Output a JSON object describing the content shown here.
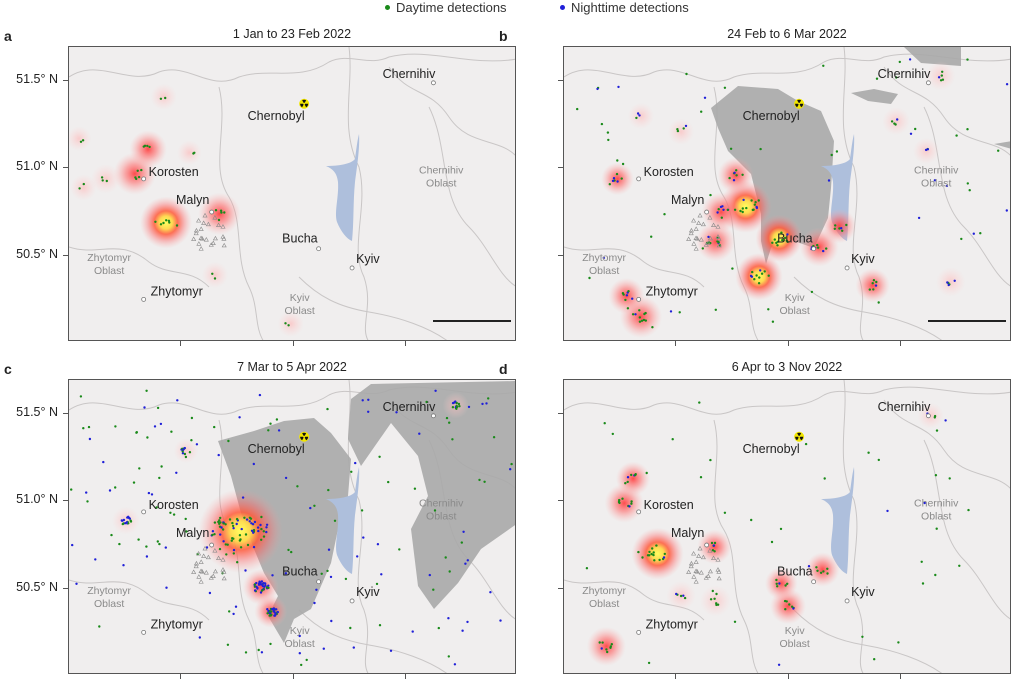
{
  "legend": {
    "daytime": {
      "label": "Daytime detections",
      "color": "#1a8a1a"
    },
    "nighttime": {
      "label": "Nighttime detections",
      "color": "#2020d8"
    }
  },
  "colors": {
    "background": "#f0eeee",
    "occupied": "#a9a9a9",
    "water": "#aebfdc",
    "border": "#c9c6c6"
  },
  "y_axis": {
    "ticks": [
      "51.5° N",
      "51.0° N",
      "50.5° N"
    ],
    "tick_values": [
      51.5,
      51.0,
      50.5
    ]
  },
  "map_extent": {
    "lon": [
      27.96,
      31.98
    ],
    "lat": [
      50.006,
      51.695
    ]
  },
  "cities": [
    {
      "name": "Korosten",
      "lon": 28.63,
      "lat": 50.94
    },
    {
      "name": "Malyn",
      "lon": 29.24,
      "lat": 50.75
    },
    {
      "name": "Bucha",
      "lon": 30.2,
      "lat": 50.54
    },
    {
      "name": "Kyiv",
      "lon": 30.5,
      "lat": 50.43
    },
    {
      "name": "Zhytomyr",
      "lon": 28.63,
      "lat": 50.25
    },
    {
      "name": "Chernihiv",
      "lon": 31.23,
      "lat": 51.49
    }
  ],
  "chernobyl": {
    "name": "Chernobyl",
    "lon": 30.07,
    "lat": 51.37,
    "icon": "radiation-icon"
  },
  "oblasts": [
    {
      "name_line1": "Zhytomyr",
      "name_line2": "Oblast",
      "lon": 28.32,
      "lat": 50.47
    },
    {
      "name_line1": "Kyiv",
      "name_line2": "Oblast",
      "lon": 30.03,
      "lat": 50.24
    },
    {
      "name_line1": "Chernihiv",
      "name_line2": "Oblast",
      "lon": 31.3,
      "lat": 50.97
    }
  ],
  "panels": [
    {
      "letter": "a",
      "title": "1 Jan to 23 Feb 2022",
      "scale_bar": true,
      "occupied": "none",
      "night_share": 0,
      "hotspots": [
        [
          28.83,
          50.69,
          1.0
        ],
        [
          29.31,
          50.74,
          0.7
        ],
        [
          28.55,
          50.97,
          0.7
        ],
        [
          28.67,
          51.11,
          0.55
        ],
        [
          28.29,
          50.94,
          0.3
        ],
        [
          28.09,
          50.89,
          0.2
        ],
        [
          28.81,
          51.41,
          0.2
        ],
        [
          28.05,
          51.17,
          0.15
        ],
        [
          29.04,
          51.09,
          0.15
        ],
        [
          29.27,
          50.39,
          0.2
        ],
        [
          29.95,
          50.11,
          0.2
        ]
      ]
    },
    {
      "letter": "b",
      "title": "24 Feb to 6 Mar 2022",
      "scale_bar": true,
      "occupied": "early",
      "night_share": 0.3,
      "hotspots": [
        [
          29.59,
          50.78,
          1.0
        ],
        [
          29.71,
          50.38,
          0.85
        ],
        [
          29.89,
          50.6,
          0.85
        ],
        [
          29.32,
          50.58,
          0.6
        ],
        [
          29.37,
          50.75,
          0.6
        ],
        [
          29.5,
          50.96,
          0.5
        ],
        [
          30.25,
          50.55,
          0.6
        ],
        [
          30.43,
          50.67,
          0.45
        ],
        [
          28.65,
          50.15,
          0.7
        ],
        [
          28.52,
          50.27,
          0.5
        ],
        [
          28.44,
          50.94,
          0.4
        ],
        [
          30.73,
          50.33,
          0.45
        ],
        [
          31.34,
          51.53,
          0.3
        ],
        [
          30.94,
          51.27,
          0.25
        ],
        [
          31.43,
          50.35,
          0.3
        ],
        [
          29.01,
          51.21,
          0.2
        ],
        [
          28.65,
          51.3,
          0.2
        ],
        [
          31.21,
          51.1,
          0.2
        ]
      ]
    },
    {
      "letter": "c",
      "title": "7 Mar to 5 Apr 2022",
      "scale_bar": false,
      "occupied": "peak",
      "night_share": 0.5,
      "hotspots": [
        [
          29.5,
          50.83,
          1.0
        ],
        [
          29.68,
          50.51,
          0.5
        ],
        [
          29.77,
          50.37,
          0.4
        ],
        [
          28.47,
          50.89,
          0.25
        ],
        [
          31.43,
          51.55,
          0.2
        ],
        [
          29.01,
          51.29,
          0.15
        ]
      ]
    },
    {
      "letter": "d",
      "title": "6 Apr to 3 Nov 2022",
      "scale_bar": false,
      "occupied": "none",
      "night_share": 0.12,
      "hotspots": [
        [
          28.8,
          50.7,
          1.0
        ],
        [
          28.5,
          50.99,
          0.6
        ],
        [
          28.58,
          51.13,
          0.45
        ],
        [
          29.31,
          50.74,
          0.45
        ],
        [
          29.32,
          50.43,
          0.35
        ],
        [
          29.01,
          50.46,
          0.3
        ],
        [
          29.97,
          50.4,
          0.5
        ],
        [
          29.91,
          50.53,
          0.4
        ],
        [
          30.28,
          50.61,
          0.45
        ],
        [
          28.34,
          50.17,
          0.6
        ],
        [
          31.25,
          51.49,
          0.2
        ]
      ]
    }
  ]
}
